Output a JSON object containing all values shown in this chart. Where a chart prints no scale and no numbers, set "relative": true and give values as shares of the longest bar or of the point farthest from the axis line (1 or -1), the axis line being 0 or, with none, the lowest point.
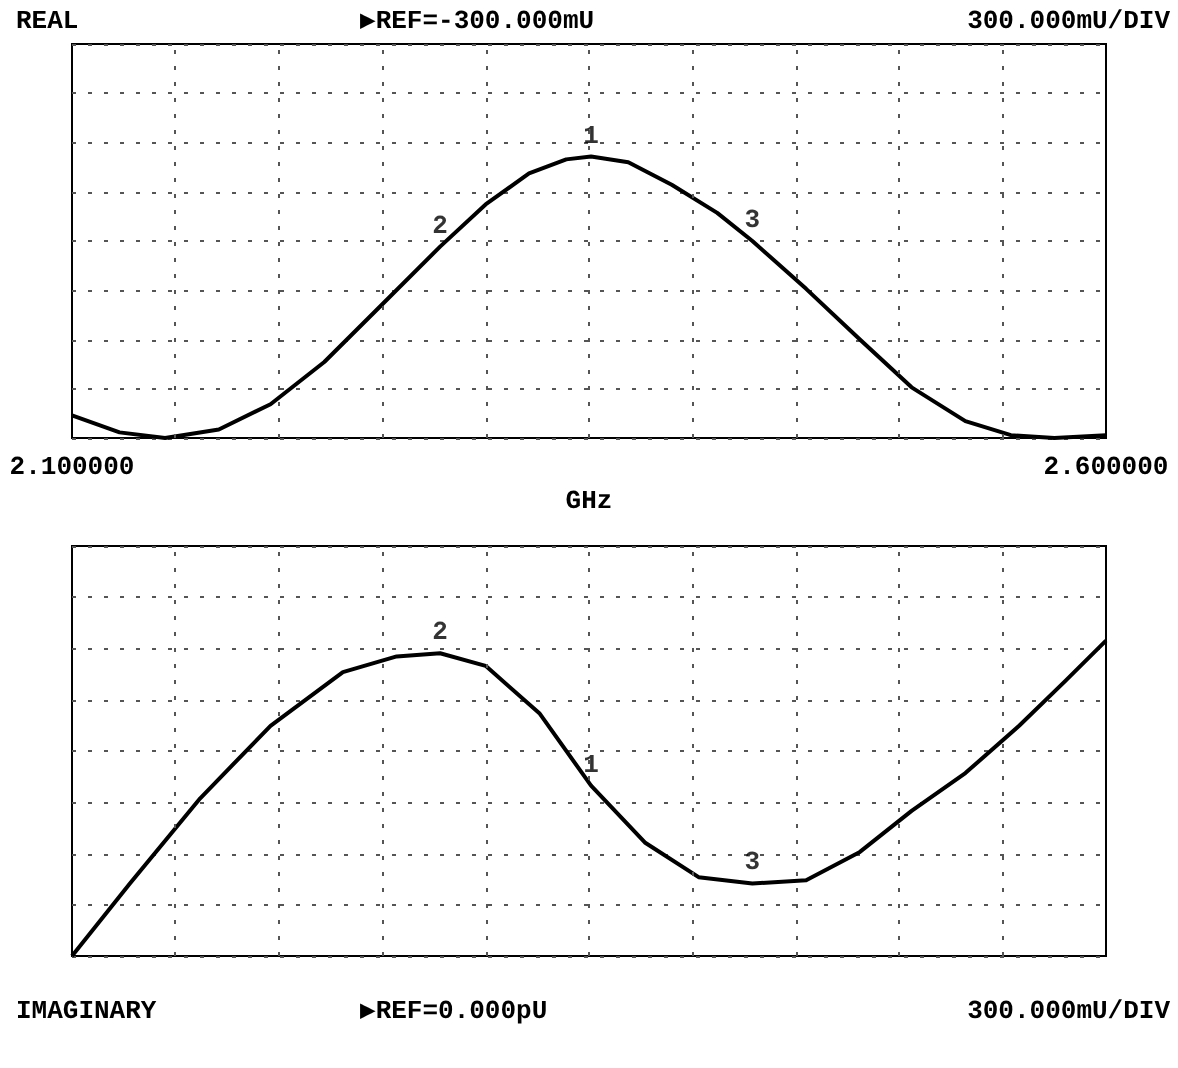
{
  "chart_data": [
    {
      "type": "line",
      "relative": true,
      "xlim": [
        2.1,
        2.6
      ],
      "xticks": [
        {
          "value": 2.1,
          "label": "2.100000"
        },
        {
          "value": 2.15,
          "label": null
        },
        {
          "value": 2.2,
          "label": null
        },
        {
          "value": 2.25,
          "label": null
        },
        {
          "value": 2.3,
          "label": null
        },
        {
          "value": 2.35,
          "label": null
        },
        {
          "value": 2.4,
          "label": null
        },
        {
          "value": 2.45,
          "label": null
        },
        {
          "value": 2.5,
          "label": null
        },
        {
          "value": 2.55,
          "label": null
        },
        {
          "value": 2.6,
          "label": "2.600000"
        }
      ],
      "xlabel": "GHz",
      "tick_labels": "x",
      "grid": true,
      "marker": "none",
      "line_style": "solid",
      "x": [
        2.1,
        2.123,
        2.145,
        2.171,
        2.196,
        2.222,
        2.248,
        2.278,
        2.3,
        2.321,
        2.339,
        2.351,
        2.369,
        2.39,
        2.412,
        2.429,
        2.455,
        2.481,
        2.506,
        2.532,
        2.554,
        2.575,
        2.6
      ],
      "series": [
        {
          "color": "#000000",
          "values": [
            0.08,
            0.02,
            0,
            0.03,
            0.12,
            0.27,
            0.46,
            0.68,
            0.83,
            0.94,
            0.99,
            1,
            0.98,
            0.9,
            0.8,
            0.7,
            0.53,
            0.35,
            0.18,
            0.06,
            0.01,
            0,
            0.01
          ]
        }
      ],
      "annotations": [
        "REAL",
        "▶REF=-300.000mU",
        "300.000mU/DIV",
        {
          "text": "2",
          "x": 2.278,
          "y": 0.68
        },
        {
          "text": "1",
          "x": 2.351,
          "y": 1
        },
        {
          "text": "3",
          "x": 2.429,
          "y": 0.7
        }
      ]
    },
    {
      "type": "line",
      "relative": true,
      "xlim": [
        2.1,
        2.6
      ],
      "xticks": [
        {
          "value": 2.1,
          "label": null
        },
        {
          "value": 2.15,
          "label": null
        },
        {
          "value": 2.2,
          "label": null
        },
        {
          "value": 2.25,
          "label": null
        },
        {
          "value": 2.3,
          "label": null
        },
        {
          "value": 2.35,
          "label": null
        },
        {
          "value": 2.4,
          "label": null
        },
        {
          "value": 2.45,
          "label": null
        },
        {
          "value": 2.5,
          "label": null
        },
        {
          "value": 2.55,
          "label": null
        },
        {
          "value": 2.6,
          "label": null
        }
      ],
      "tick_labels": false,
      "grid": true,
      "marker": "none",
      "line_style": "solid",
      "x": [
        2.1,
        2.128,
        2.162,
        2.196,
        2.231,
        2.257,
        2.278,
        2.3,
        2.326,
        2.351,
        2.377,
        2.403,
        2.429,
        2.455,
        2.481,
        2.506,
        2.532,
        2.558,
        2.58,
        2.6
      ],
      "series": [
        {
          "color": "#000000",
          "values": [
            0,
            0.23,
            0.5,
            0.73,
            0.9,
            0.95,
            0.96,
            0.92,
            0.77,
            0.54,
            0.36,
            0.25,
            0.23,
            0.24,
            0.33,
            0.46,
            0.58,
            0.73,
            0.87,
            1
          ]
        }
      ],
      "annotations": [
        "IMAGINARY",
        "▶REF=0.000pU",
        "300.000mU/DIV",
        {
          "text": "2",
          "x": 2.278,
          "y": 0.96
        },
        {
          "text": "1",
          "x": 2.351,
          "y": 0.54
        },
        {
          "text": "3",
          "x": 2.429,
          "y": 0.23
        }
      ]
    }
  ]
}
